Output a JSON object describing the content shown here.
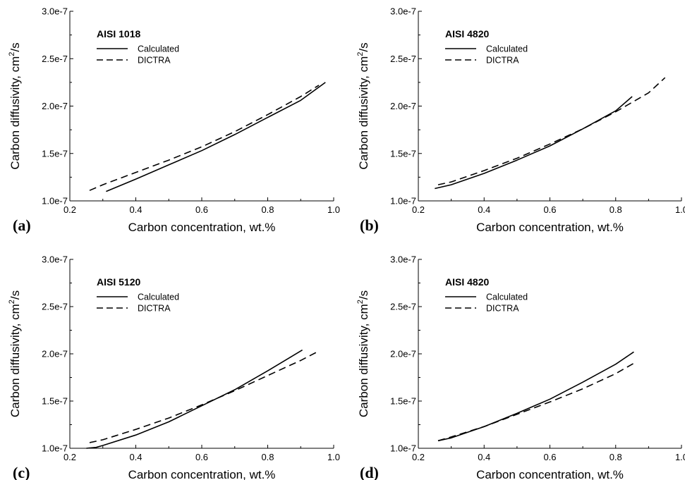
{
  "chart_data": [
    {
      "type": "line",
      "panel_label": "(a)",
      "title": "AISI 1018",
      "xlabel": "Carbon concentration, wt.%",
      "ylabel": "Carbon diffusivity, cm²/s",
      "ylabel_text": "Carbon diffusivity, cm",
      "ylabel_sup": "2",
      "ylabel_unit": "/s",
      "xlim": [
        0.2,
        1.0
      ],
      "ylim": [
        1e-07,
        3e-07
      ],
      "xticks": [
        "0.2",
        "0.4",
        "0.6",
        "0.8",
        "1.0"
      ],
      "yticks": [
        "1.0e-7",
        "1.5e-7",
        "2.0e-7",
        "2.5e-7",
        "3.0e-7"
      ],
      "grid": false,
      "legend_position": "top-left",
      "series": [
        {
          "name": "Calculated",
          "style": "solid",
          "x": [
            0.31,
            0.4,
            0.5,
            0.6,
            0.7,
            0.8,
            0.9,
            0.975
          ],
          "y": [
            1.1e-07,
            1.23e-07,
            1.38e-07,
            1.53e-07,
            1.7e-07,
            1.88e-07,
            2.06e-07,
            2.25e-07
          ]
        },
        {
          "name": "DICTRA",
          "style": "dashed",
          "x": [
            0.26,
            0.3,
            0.4,
            0.5,
            0.6,
            0.7,
            0.8,
            0.9,
            0.955
          ],
          "y": [
            1.11e-07,
            1.17e-07,
            1.3e-07,
            1.43e-07,
            1.57e-07,
            1.73e-07,
            1.91e-07,
            2.1e-07,
            2.22e-07
          ]
        }
      ]
    },
    {
      "type": "line",
      "panel_label": "(b)",
      "title": "AISI 4820",
      "xlabel": "Carbon concentration, wt.%",
      "ylabel": "Carbon diffusivity, cm²/s",
      "ylabel_text": "Carbon diffusivity, cm",
      "ylabel_sup": "2",
      "ylabel_unit": "/s",
      "xlim": [
        0.2,
        1.0
      ],
      "ylim": [
        1e-07,
        3e-07
      ],
      "xticks": [
        "0.2",
        "0.4",
        "0.6",
        "0.8",
        "1.0"
      ],
      "yticks": [
        "1.0e-7",
        "1.5e-7",
        "2.0e-7",
        "2.5e-7",
        "3.0e-7"
      ],
      "grid": false,
      "legend_position": "top-left",
      "series": [
        {
          "name": "Calculated",
          "style": "solid",
          "x": [
            0.25,
            0.3,
            0.4,
            0.5,
            0.6,
            0.7,
            0.8,
            0.85
          ],
          "y": [
            1.13e-07,
            1.17e-07,
            1.29e-07,
            1.43e-07,
            1.58e-07,
            1.76e-07,
            1.95e-07,
            2.1e-07
          ]
        },
        {
          "name": "DICTRA",
          "style": "dashed",
          "x": [
            0.26,
            0.3,
            0.4,
            0.5,
            0.6,
            0.7,
            0.8,
            0.9,
            0.95
          ],
          "y": [
            1.17e-07,
            1.2e-07,
            1.32e-07,
            1.45e-07,
            1.6e-07,
            1.76e-07,
            1.94e-07,
            2.14e-07,
            2.3e-07
          ]
        }
      ]
    },
    {
      "type": "line",
      "panel_label": "(c)",
      "title": "AISI 5120",
      "xlabel": "Carbon concentration, wt.%",
      "ylabel": "Carbon diffusivity, cm²/s",
      "ylabel_text": "Carbon diffusivity, cm",
      "ylabel_sup": "2",
      "ylabel_unit": "/s",
      "xlim": [
        0.2,
        1.0
      ],
      "ylim": [
        1e-07,
        3e-07
      ],
      "xticks": [
        "0.2",
        "0.4",
        "0.6",
        "0.8",
        "1.0"
      ],
      "yticks": [
        "1.0e-7",
        "1.5e-7",
        "2.0e-7",
        "2.5e-7",
        "3.0e-7"
      ],
      "grid": false,
      "legend_position": "top-left",
      "series": [
        {
          "name": "Calculated",
          "style": "solid",
          "x": [
            0.25,
            0.28,
            0.3,
            0.4,
            0.5,
            0.6,
            0.7,
            0.8,
            0.905
          ],
          "y": [
            1e-07,
            1.01e-07,
            1.03e-07,
            1.14e-07,
            1.28e-07,
            1.45e-07,
            1.62e-07,
            1.82e-07,
            2.04e-07
          ]
        },
        {
          "name": "DICTRA",
          "style": "dashed",
          "x": [
            0.26,
            0.3,
            0.4,
            0.5,
            0.6,
            0.7,
            0.8,
            0.9,
            0.95
          ],
          "y": [
            1.06e-07,
            1.09e-07,
            1.2e-07,
            1.32e-07,
            1.46e-07,
            1.61e-07,
            1.77e-07,
            1.93e-07,
            2.02e-07
          ]
        }
      ]
    },
    {
      "type": "line",
      "panel_label": "(d)",
      "title": "AISI 4820",
      "xlabel": "Carbon concentration, wt.%",
      "ylabel": "Carbon diffusivity, cm²/s",
      "ylabel_text": "Carbon diffusivity, cm",
      "ylabel_sup": "2",
      "ylabel_unit": "/s",
      "xlim": [
        0.2,
        1.0
      ],
      "ylim": [
        1e-07,
        3e-07
      ],
      "xticks": [
        "0.2",
        "0.4",
        "0.6",
        "0.8",
        "1.0"
      ],
      "yticks": [
        "1.0e-7",
        "1.5e-7",
        "2.0e-7",
        "2.5e-7",
        "3.0e-7"
      ],
      "grid": false,
      "legend_position": "top-left",
      "series": [
        {
          "name": "Calculated",
          "style": "solid",
          "x": [
            0.26,
            0.3,
            0.4,
            0.5,
            0.6,
            0.7,
            0.8,
            0.855
          ],
          "y": [
            1.08e-07,
            1.11e-07,
            1.23e-07,
            1.37e-07,
            1.52e-07,
            1.7e-07,
            1.89e-07,
            2.02e-07
          ]
        },
        {
          "name": "DICTRA",
          "style": "dashed",
          "x": [
            0.26,
            0.3,
            0.4,
            0.5,
            0.6,
            0.7,
            0.8,
            0.855
          ],
          "y": [
            1.08e-07,
            1.12e-07,
            1.23e-07,
            1.36e-07,
            1.49e-07,
            1.63e-07,
            1.79e-07,
            1.9e-07
          ]
        }
      ]
    }
  ]
}
